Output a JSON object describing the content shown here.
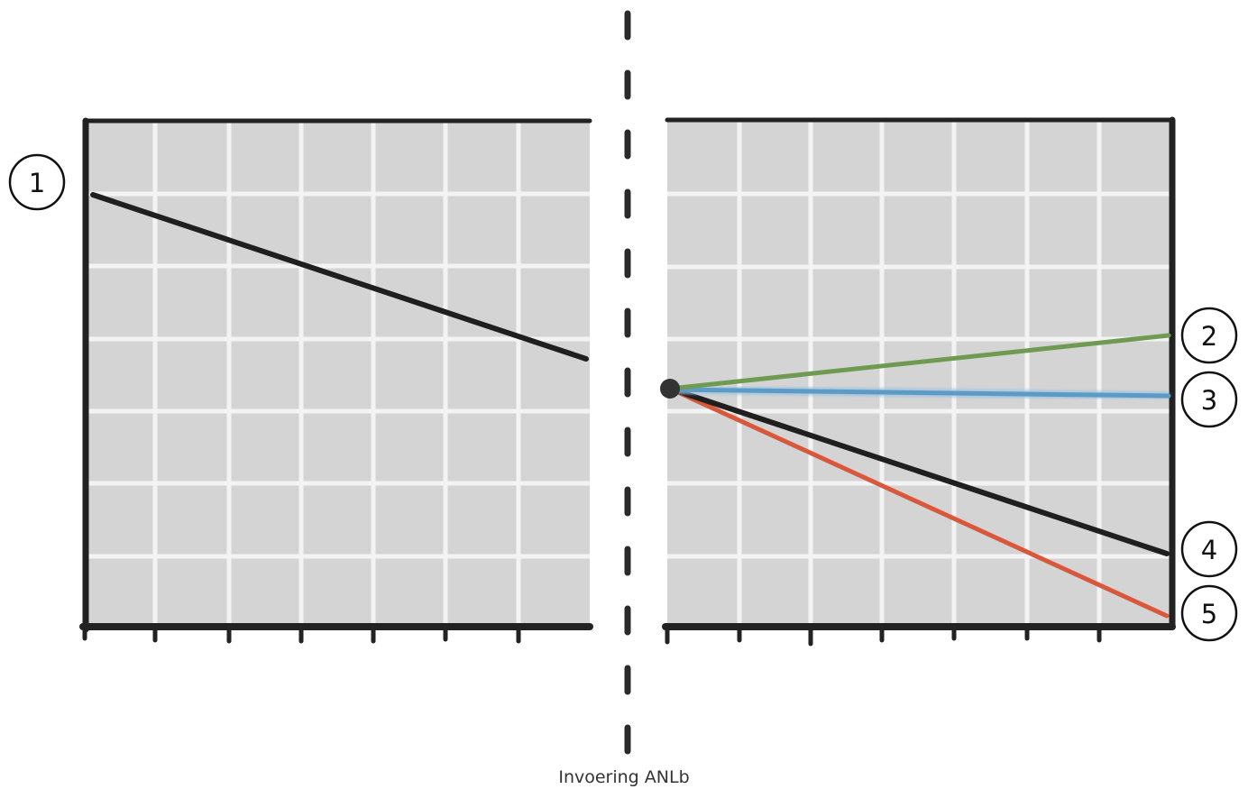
{
  "caption": "Invoering ANLb",
  "colors": {
    "panel": "#d3d3d3",
    "grid": "#f2f2f2",
    "axis": "#222222",
    "black_line": "#1f1f1f",
    "green_line": "#6f9a52",
    "blue_line": "#5b9bc6",
    "red_line": "#d9583b"
  },
  "scenarios": {
    "before": {
      "label": "1",
      "trend": "declining",
      "color": "#1f1f1f"
    },
    "after": [
      {
        "label": "2",
        "trend": "increasing",
        "color": "#6f9a52"
      },
      {
        "label": "3",
        "trend": "stable",
        "color": "#5b9bc6"
      },
      {
        "label": "4",
        "trend": "declining",
        "color": "#1f1f1f"
      },
      {
        "label": "5",
        "trend": "strongly declining",
        "color": "#d9583b"
      }
    ]
  }
}
